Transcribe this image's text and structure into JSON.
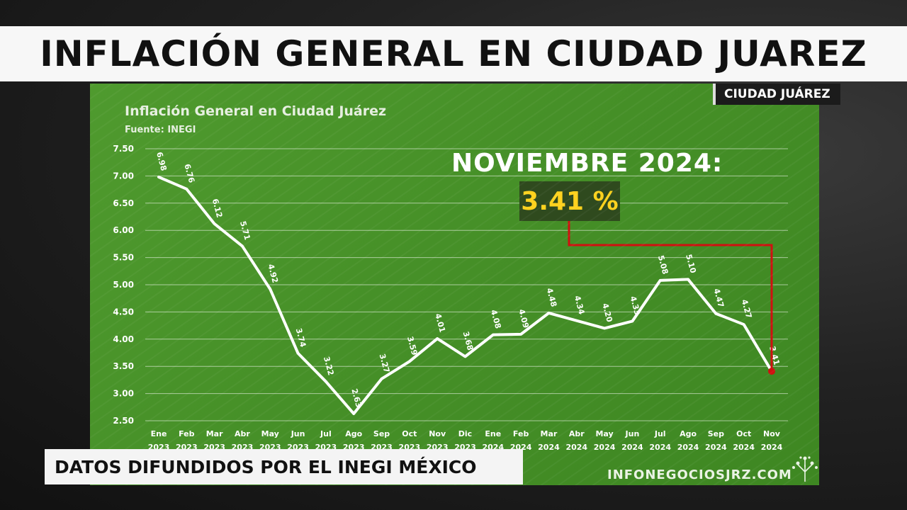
{
  "headline": "INFLACIÓN GENERAL EN CIUDAD JUAREZ",
  "city_tag": "CIUDAD JUÁREZ",
  "callout": {
    "heading": "NOVIEMBRE 2024:",
    "value": "3.41 %"
  },
  "ticker": "DATOS DIFUNDIDOS POR EL INEGI MÉXICO",
  "watermark": "INFONEGOCIOSJRZ.COM",
  "colors": {
    "panel": "#479128",
    "line": "#ffffff",
    "highlight": "#d01010",
    "callout_text": "#ffd21e"
  },
  "chart_data": {
    "type": "line",
    "title": "Inflación General en Ciudad Juárez",
    "subtitle": "Fuente: INEGI",
    "categories": [
      [
        "Ene",
        "2023"
      ],
      [
        "Feb",
        "2023"
      ],
      [
        "Mar",
        "2023"
      ],
      [
        "Abr",
        "2023"
      ],
      [
        "May",
        "2023"
      ],
      [
        "Jun",
        "2023"
      ],
      [
        "Jul",
        "2023"
      ],
      [
        "Ago",
        "2023"
      ],
      [
        "Sep",
        "2023"
      ],
      [
        "Oct",
        "2023"
      ],
      [
        "Nov",
        "2023"
      ],
      [
        "Dic",
        "2023"
      ],
      [
        "Ene",
        "2024"
      ],
      [
        "Feb",
        "2024"
      ],
      [
        "Mar",
        "2024"
      ],
      [
        "Abr",
        "2024"
      ],
      [
        "May",
        "2024"
      ],
      [
        "Jun",
        "2024"
      ],
      [
        "Jul",
        "2024"
      ],
      [
        "Ago",
        "2024"
      ],
      [
        "Sep",
        "2024"
      ],
      [
        "Oct",
        "2024"
      ],
      [
        "Nov",
        "2024"
      ]
    ],
    "values": [
      6.98,
      6.76,
      6.12,
      5.71,
      4.92,
      3.74,
      3.22,
      2.63,
      3.27,
      3.59,
      4.01,
      3.68,
      4.08,
      4.09,
      4.48,
      4.34,
      4.2,
      4.33,
      5.08,
      5.1,
      4.47,
      4.27,
      3.41
    ],
    "data_labels": [
      "6.98",
      "6.76",
      "6.12",
      "5.71",
      "4.92",
      "3.74",
      "3.22",
      "2.63",
      "3.27",
      "3.59",
      "4.01",
      "3.68",
      "4.08",
      "4.09",
      "4.48",
      "4.34",
      "4.20",
      "4.33",
      "5.08",
      "5.10",
      "4.47",
      "4.27",
      "3.41"
    ],
    "y_ticks": [
      "7.50",
      "7.00",
      "6.50",
      "6.00",
      "5.50",
      "5.00",
      "4.50",
      "4.00",
      "3.50",
      "3.00",
      "2.50"
    ],
    "ylim": [
      2.5,
      7.5
    ],
    "grid": true,
    "highlight_index": 22
  }
}
